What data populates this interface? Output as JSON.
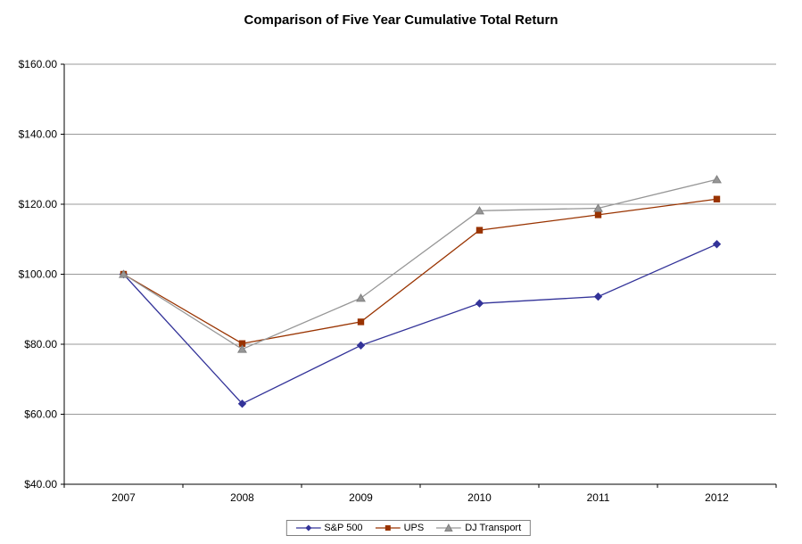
{
  "chart_data": {
    "type": "line",
    "title": "Comparison of Five Year Cumulative Total Return",
    "categories": [
      "2007",
      "2008",
      "2009",
      "2010",
      "2011",
      "2012"
    ],
    "series": [
      {
        "name": "S&P 500",
        "marker": "diamond",
        "color": "#333399",
        "values": [
          100.0,
          63.0,
          79.67,
          91.67,
          93.61,
          108.59
        ]
      },
      {
        "name": "UPS",
        "marker": "square",
        "color": "#993300",
        "values": [
          100.0,
          80.2,
          86.39,
          112.57,
          116.97,
          121.46
        ]
      },
      {
        "name": "DJ Transport",
        "marker": "triangle",
        "color": "#969696",
        "values": [
          100.0,
          78.58,
          93.19,
          118.14,
          118.86,
          127.07
        ]
      }
    ],
    "ylim": [
      40,
      160
    ],
    "ytick_step": 20,
    "ytick_labels": [
      "$40.00",
      "$60.00",
      "$80.00",
      "$100.00",
      "$120.00",
      "$140.00",
      "$160.00"
    ],
    "ytick_format": "currency",
    "xlabel": "",
    "ylabel": "",
    "grid": "horizontal",
    "legend_position": "bottom",
    "colors": {
      "grid_line": "#999999",
      "axis_line": "#000000",
      "plot_background": "#ffffff"
    }
  }
}
